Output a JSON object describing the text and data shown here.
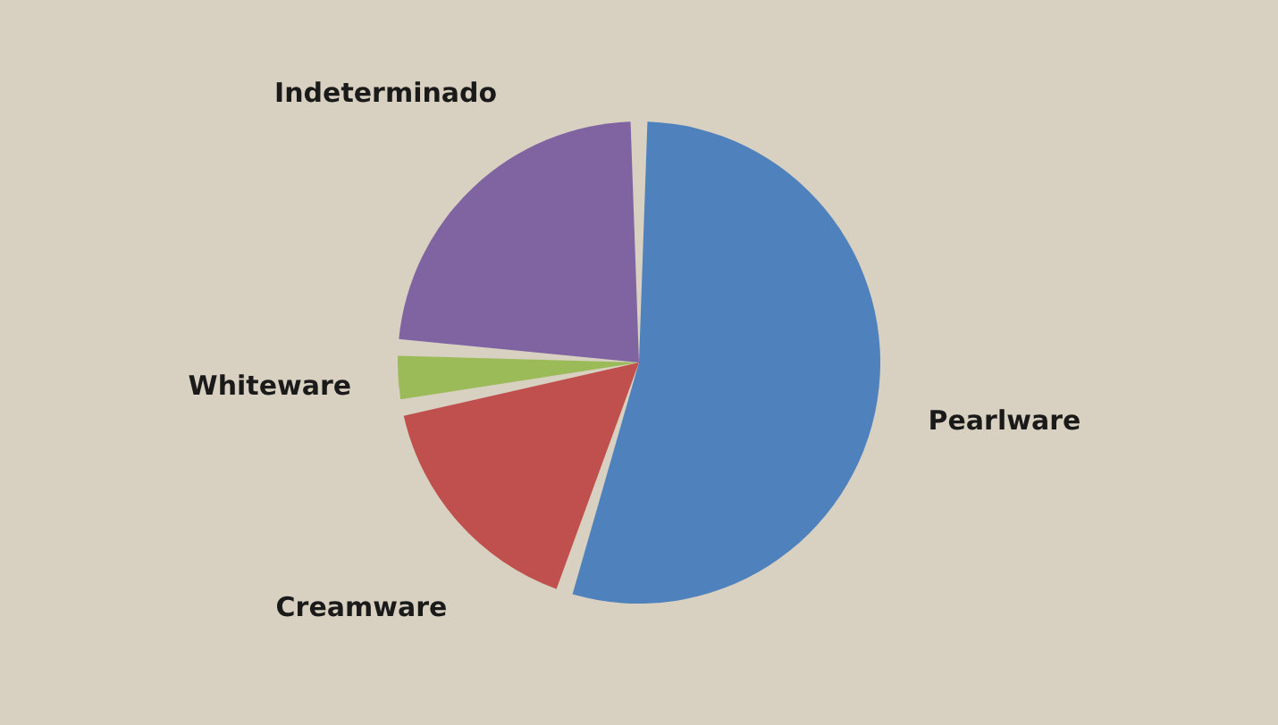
{
  "chart_data": {
    "type": "pie",
    "categories": [
      "Pearlware",
      "Creamware",
      "Whiteware",
      "Indeterminado"
    ],
    "values": [
      55,
      17,
      4,
      24
    ],
    "colors": [
      "#4f81bd",
      "#c0504d",
      "#9bbb59",
      "#8064a2"
    ],
    "legend": false
  }
}
